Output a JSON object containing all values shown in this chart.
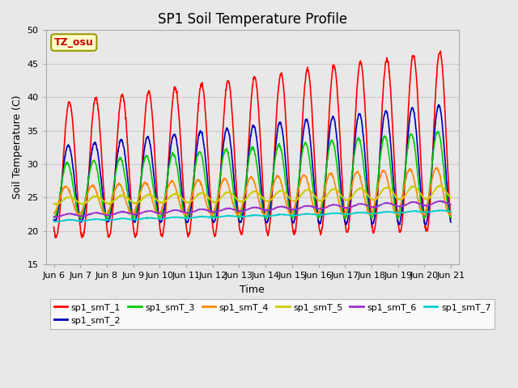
{
  "title": "SP1 Soil Temperature Profile",
  "xlabel": "Time",
  "ylabel": "Soil Temperature (C)",
  "ylim": [
    15,
    50
  ],
  "xlim_days": [
    5.7,
    21.3
  ],
  "xtick_labels": [
    "Jun 6",
    "Jun 7",
    "Jun 8",
    "Jun 9",
    "Jun 10",
    "Jun 11",
    "Jun 12",
    "Jun 13",
    "Jun 14",
    "Jun 15",
    "Jun 16",
    "Jun 17",
    "Jun 18",
    "Jun 19",
    "Jun 20",
    "Jun 21"
  ],
  "xtick_positions": [
    6,
    7,
    8,
    9,
    10,
    11,
    12,
    13,
    14,
    15,
    16,
    17,
    18,
    19,
    20,
    21
  ],
  "ytick_labels": [
    "15",
    "20",
    "25",
    "30",
    "35",
    "40",
    "45",
    "50"
  ],
  "ytick_positions": [
    15,
    20,
    25,
    30,
    35,
    40,
    45,
    50
  ],
  "legend_label": "TZ_osu",
  "series_labels": [
    "sp1_smT_1",
    "sp1_smT_2",
    "sp1_smT_3",
    "sp1_smT_4",
    "sp1_smT_5",
    "sp1_smT_6",
    "sp1_smT_7"
  ],
  "series_colors": [
    "#ff0000",
    "#0000bb",
    "#00cc00",
    "#ff8800",
    "#cccc00",
    "#9933cc",
    "#00cccc"
  ],
  "background_color": "#e8e8e8",
  "plot_bg_color": "#e8e8e8",
  "grid_color": "#cccccc",
  "legend_box_color": "#ffffcc",
  "legend_box_edge": "#999900",
  "title_fontsize": 12,
  "axis_label_fontsize": 9,
  "tick_label_fontsize": 8,
  "legend_fontsize": 8
}
